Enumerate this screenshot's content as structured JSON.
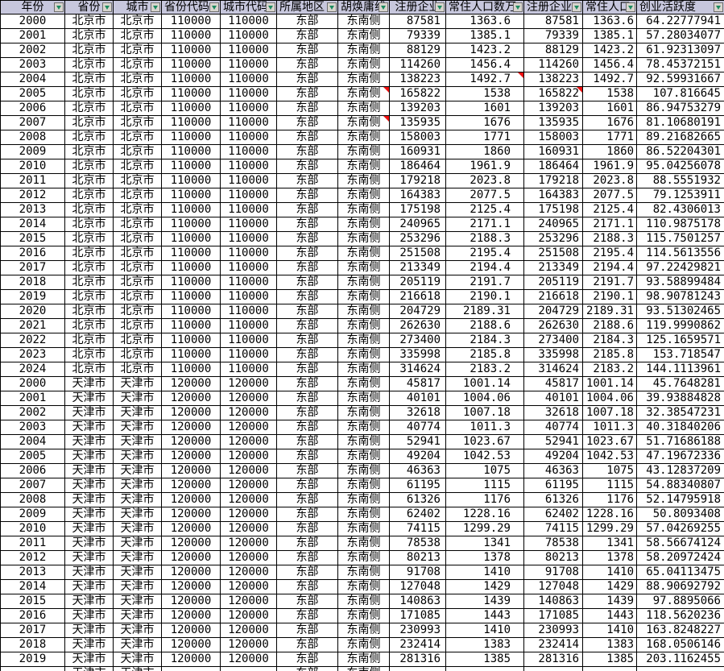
{
  "table": {
    "colors": {
      "header_bg": "#c7c7dd",
      "grid": "#000000",
      "filter_arrow": "#1d8a5f",
      "comment_indicator": "#ee1111"
    },
    "columns": [
      {
        "key": "year",
        "label": "年份"
      },
      {
        "key": "province",
        "label": "省份"
      },
      {
        "key": "city",
        "label": "城市"
      },
      {
        "key": "province-code",
        "label": "省份代码"
      },
      {
        "key": "city-code",
        "label": "城市代码"
      },
      {
        "key": "region",
        "label": "所属地区"
      },
      {
        "key": "hu-line",
        "label": "胡焕庸线"
      },
      {
        "key": "registered-enterprises",
        "label": "注册企业"
      },
      {
        "key": "resident-population",
        "label": "常住人口数万"
      },
      {
        "key": "registered-enterprises-2",
        "label": "注册企业"
      },
      {
        "key": "resident-population-2",
        "label": "常住人口"
      },
      {
        "key": "entrepreneurship-activity",
        "label": "创业活跃度"
      }
    ],
    "rows": [
      [
        "2000",
        "北京市",
        "北京市",
        "110000",
        "110000",
        "东部",
        "东南侧",
        "87581",
        "1363.6",
        "87581",
        "1363.6",
        "64.22777941"
      ],
      [
        "2001",
        "北京市",
        "北京市",
        "110000",
        "110000",
        "东部",
        "东南侧",
        "79339",
        "1385.1",
        "79339",
        "1385.1",
        "57.28034077"
      ],
      [
        "2002",
        "北京市",
        "北京市",
        "110000",
        "110000",
        "东部",
        "东南侧",
        "88129",
        "1423.2",
        "88129",
        "1423.2",
        "61.92313097"
      ],
      [
        "2003",
        "北京市",
        "北京市",
        "110000",
        "110000",
        "东部",
        "东南侧",
        "114260",
        "1456.4",
        "114260",
        "1456.4",
        "78.45372151"
      ],
      [
        "2004",
        "北京市",
        "北京市",
        "110000",
        "110000",
        "东部",
        "东南侧",
        "138223",
        "1492.7",
        "138223",
        "1492.7",
        "92.59931667"
      ],
      [
        "2005",
        "北京市",
        "北京市",
        "110000",
        "110000",
        "东部",
        "东南侧",
        "165822",
        "1538",
        "165822",
        "1538",
        "107.816645"
      ],
      [
        "2006",
        "北京市",
        "北京市",
        "110000",
        "110000",
        "东部",
        "东南侧",
        "139203",
        "1601",
        "139203",
        "1601",
        "86.94753279"
      ],
      [
        "2007",
        "北京市",
        "北京市",
        "110000",
        "110000",
        "东部",
        "东南侧",
        "135935",
        "1676",
        "135935",
        "1676",
        "81.10680191"
      ],
      [
        "2008",
        "北京市",
        "北京市",
        "110000",
        "110000",
        "东部",
        "东南侧",
        "158003",
        "1771",
        "158003",
        "1771",
        "89.21682665"
      ],
      [
        "2009",
        "北京市",
        "北京市",
        "110000",
        "110000",
        "东部",
        "东南侧",
        "160931",
        "1860",
        "160931",
        "1860",
        "86.52204301"
      ],
      [
        "2010",
        "北京市",
        "北京市",
        "110000",
        "110000",
        "东部",
        "东南侧",
        "186464",
        "1961.9",
        "186464",
        "1961.9",
        "95.04256078"
      ],
      [
        "2011",
        "北京市",
        "北京市",
        "110000",
        "110000",
        "东部",
        "东南侧",
        "179218",
        "2023.8",
        "179218",
        "2023.8",
        "88.5551932"
      ],
      [
        "2012",
        "北京市",
        "北京市",
        "110000",
        "110000",
        "东部",
        "东南侧",
        "164383",
        "2077.5",
        "164383",
        "2077.5",
        "79.1253911"
      ],
      [
        "2013",
        "北京市",
        "北京市",
        "110000",
        "110000",
        "东部",
        "东南侧",
        "175198",
        "2125.4",
        "175198",
        "2125.4",
        "82.4306013"
      ],
      [
        "2014",
        "北京市",
        "北京市",
        "110000",
        "110000",
        "东部",
        "东南侧",
        "240965",
        "2171.1",
        "240965",
        "2171.1",
        "110.9875178"
      ],
      [
        "2015",
        "北京市",
        "北京市",
        "110000",
        "110000",
        "东部",
        "东南侧",
        "253296",
        "2188.3",
        "253296",
        "2188.3",
        "115.7501257"
      ],
      [
        "2016",
        "北京市",
        "北京市",
        "110000",
        "110000",
        "东部",
        "东南侧",
        "251508",
        "2195.4",
        "251508",
        "2195.4",
        "114.5613556"
      ],
      [
        "2017",
        "北京市",
        "北京市",
        "110000",
        "110000",
        "东部",
        "东南侧",
        "213349",
        "2194.4",
        "213349",
        "2194.4",
        "97.22429821"
      ],
      [
        "2018",
        "北京市",
        "北京市",
        "110000",
        "110000",
        "东部",
        "东南侧",
        "205119",
        "2191.7",
        "205119",
        "2191.7",
        "93.58899484"
      ],
      [
        "2019",
        "北京市",
        "北京市",
        "110000",
        "110000",
        "东部",
        "东南侧",
        "216618",
        "2190.1",
        "216618",
        "2190.1",
        "98.90781243"
      ],
      [
        "2020",
        "北京市",
        "北京市",
        "110000",
        "110000",
        "东部",
        "东南侧",
        "204729",
        "2189.31",
        "204729",
        "2189.31",
        "93.51302465"
      ],
      [
        "2021",
        "北京市",
        "北京市",
        "110000",
        "110000",
        "东部",
        "东南侧",
        "262630",
        "2188.6",
        "262630",
        "2188.6",
        "119.9990862"
      ],
      [
        "2022",
        "北京市",
        "北京市",
        "110000",
        "110000",
        "东部",
        "东南侧",
        "273400",
        "2184.3",
        "273400",
        "2184.3",
        "125.1659571"
      ],
      [
        "2023",
        "北京市",
        "北京市",
        "110000",
        "110000",
        "东部",
        "东南侧",
        "335998",
        "2185.8",
        "335998",
        "2185.8",
        "153.718547"
      ],
      [
        "2024",
        "北京市",
        "北京市",
        "110000",
        "110000",
        "东部",
        "东南侧",
        "314624",
        "2183.2",
        "314624",
        "2183.2",
        "144.1113961"
      ],
      [
        "2000",
        "天津市",
        "天津市",
        "120000",
        "120000",
        "东部",
        "东南侧",
        "45817",
        "1001.14",
        "45817",
        "1001.14",
        "45.7648281"
      ],
      [
        "2001",
        "天津市",
        "天津市",
        "120000",
        "120000",
        "东部",
        "东南侧",
        "40101",
        "1004.06",
        "40101",
        "1004.06",
        "39.93884828"
      ],
      [
        "2002",
        "天津市",
        "天津市",
        "120000",
        "120000",
        "东部",
        "东南侧",
        "32618",
        "1007.18",
        "32618",
        "1007.18",
        "32.38547231"
      ],
      [
        "2003",
        "天津市",
        "天津市",
        "120000",
        "120000",
        "东部",
        "东南侧",
        "40774",
        "1011.3",
        "40774",
        "1011.3",
        "40.31840206"
      ],
      [
        "2004",
        "天津市",
        "天津市",
        "120000",
        "120000",
        "东部",
        "东南侧",
        "52941",
        "1023.67",
        "52941",
        "1023.67",
        "51.71686188"
      ],
      [
        "2005",
        "天津市",
        "天津市",
        "120000",
        "120000",
        "东部",
        "东南侧",
        "49204",
        "1042.53",
        "49204",
        "1042.53",
        "47.19672336"
      ],
      [
        "2006",
        "天津市",
        "天津市",
        "120000",
        "120000",
        "东部",
        "东南侧",
        "46363",
        "1075",
        "46363",
        "1075",
        "43.12837209"
      ],
      [
        "2007",
        "天津市",
        "天津市",
        "120000",
        "120000",
        "东部",
        "东南侧",
        "61195",
        "1115",
        "61195",
        "1115",
        "54.88340807"
      ],
      [
        "2008",
        "天津市",
        "天津市",
        "120000",
        "120000",
        "东部",
        "东南侧",
        "61326",
        "1176",
        "61326",
        "1176",
        "52.14795918"
      ],
      [
        "2009",
        "天津市",
        "天津市",
        "120000",
        "120000",
        "东部",
        "东南侧",
        "62402",
        "1228.16",
        "62402",
        "1228.16",
        "50.8093408"
      ],
      [
        "2010",
        "天津市",
        "天津市",
        "120000",
        "120000",
        "东部",
        "东南侧",
        "74115",
        "1299.29",
        "74115",
        "1299.29",
        "57.04269255"
      ],
      [
        "2011",
        "天津市",
        "天津市",
        "120000",
        "120000",
        "东部",
        "东南侧",
        "78538",
        "1341",
        "78538",
        "1341",
        "58.56674124"
      ],
      [
        "2012",
        "天津市",
        "天津市",
        "120000",
        "120000",
        "东部",
        "东南侧",
        "80213",
        "1378",
        "80213",
        "1378",
        "58.20972424"
      ],
      [
        "2013",
        "天津市",
        "天津市",
        "120000",
        "120000",
        "东部",
        "东南侧",
        "91708",
        "1410",
        "91708",
        "1410",
        "65.04113475"
      ],
      [
        "2014",
        "天津市",
        "天津市",
        "120000",
        "120000",
        "东部",
        "东南侧",
        "127048",
        "1429",
        "127048",
        "1429",
        "88.90692792"
      ],
      [
        "2015",
        "天津市",
        "天津市",
        "120000",
        "120000",
        "东部",
        "东南侧",
        "140863",
        "1439",
        "140863",
        "1439",
        "97.8895066"
      ],
      [
        "2016",
        "天津市",
        "天津市",
        "120000",
        "120000",
        "东部",
        "东南侧",
        "171085",
        "1443",
        "171085",
        "1443",
        "118.5620236"
      ],
      [
        "2017",
        "天津市",
        "天津市",
        "120000",
        "120000",
        "东部",
        "东南侧",
        "230993",
        "1410",
        "230993",
        "1410",
        "163.8248227"
      ],
      [
        "2018",
        "天津市",
        "天津市",
        "120000",
        "120000",
        "东部",
        "东南侧",
        "232414",
        "1383",
        "232414",
        "1383",
        "168.0506146"
      ],
      [
        "2019",
        "天津市",
        "天津市",
        "120000",
        "120000",
        "东部",
        "东南侧",
        "281316",
        "1385",
        "281316",
        "1385",
        "203.1162455"
      ]
    ],
    "partial_row": [
      "",
      "天津市",
      "天津市",
      "",
      "",
      "东部",
      "东南侧",
      "",
      "",
      "",
      "",
      ""
    ],
    "comment_cells": [
      [
        4,
        8
      ],
      [
        5,
        6
      ],
      [
        5,
        9
      ],
      [
        7,
        6
      ]
    ]
  }
}
